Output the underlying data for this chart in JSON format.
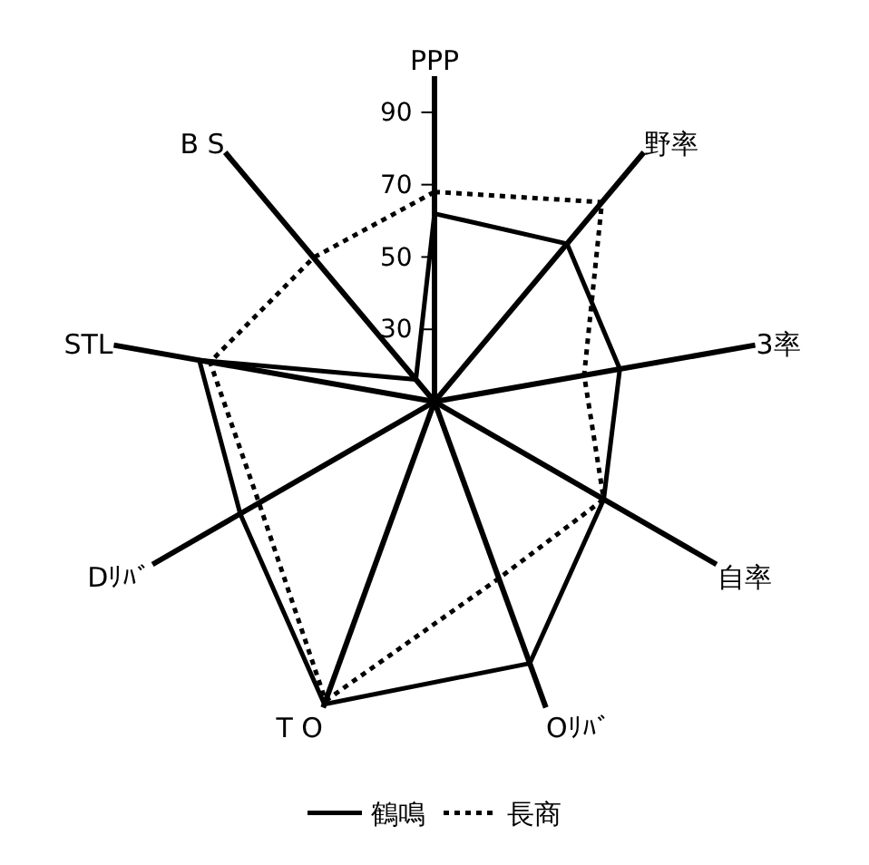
{
  "chart_data": {
    "type": "radar",
    "categories": [
      "PPP",
      "野率",
      "3率",
      "自率",
      "Oﾘﾊﾞ",
      "T O",
      "Dﾘﾊﾞ",
      "STL",
      "B S"
    ],
    "series": [
      {
        "name": "鶴鳴",
        "color": "#000000",
        "line_style": "solid",
        "values": [
          62,
          67,
          62,
          64,
          87,
          99,
          72,
          76,
          18
        ]
      },
      {
        "name": "長商",
        "color": "#000000",
        "line_style": "dotted",
        "values": [
          68,
          82,
          52,
          64,
          62,
          98,
          66,
          73,
          62
        ]
      }
    ],
    "ylim": [
      10,
      100
    ],
    "yticks": [
      30,
      50,
      70,
      90
    ],
    "grid": "x",
    "legend": "bottom",
    "marker": "none"
  }
}
